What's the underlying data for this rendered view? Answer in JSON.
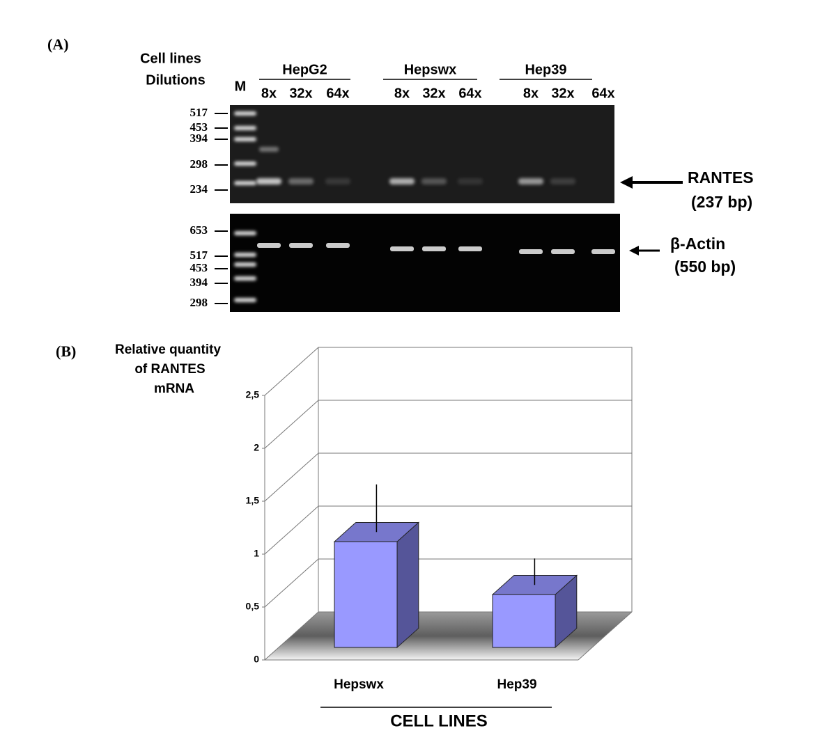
{
  "panel_a": {
    "label": "(A)",
    "row_labels": [
      "Cell lines",
      "Dilutions"
    ],
    "marker_lane": "M",
    "groups": [
      {
        "name": "HepG2",
        "dilutions": [
          "8x",
          "32x",
          "64x"
        ]
      },
      {
        "name": "Hepswx",
        "dilutions": [
          "8x",
          "32x",
          "64x"
        ]
      },
      {
        "name": "Hep39",
        "dilutions": [
          "8x",
          "32x",
          "64x"
        ]
      }
    ],
    "rantes_gel": {
      "ladder": [
        "517",
        "453",
        "394",
        "298",
        "234"
      ],
      "band": "RANTES",
      "size": "(237 bp)"
    },
    "actin_gel": {
      "ladder": [
        "653",
        "517",
        "453",
        "394",
        "298"
      ],
      "band": "β-Actin",
      "size": "(550 bp)"
    }
  },
  "chart_data": {
    "type": "bar3d",
    "panel_label": "(B)",
    "y_label": [
      "Relative quantity",
      "of RANTES",
      "mRNA"
    ],
    "x_label": "CELL LINES",
    "categories": [
      "Hepswx",
      "Hep39"
    ],
    "values": [
      1,
      0.5
    ],
    "errors": [
      0.45,
      0.25
    ],
    "color": "#9999ff",
    "ylim": [
      0,
      2.5
    ],
    "yticks": [
      0,
      {
        "value": 0.5,
        "label": "0,5"
      },
      1,
      {
        "value": 1.5,
        "label": "1,5"
      },
      2,
      {
        "value": 2.5,
        "label": "2,5"
      }
    ],
    "grid": true
  }
}
